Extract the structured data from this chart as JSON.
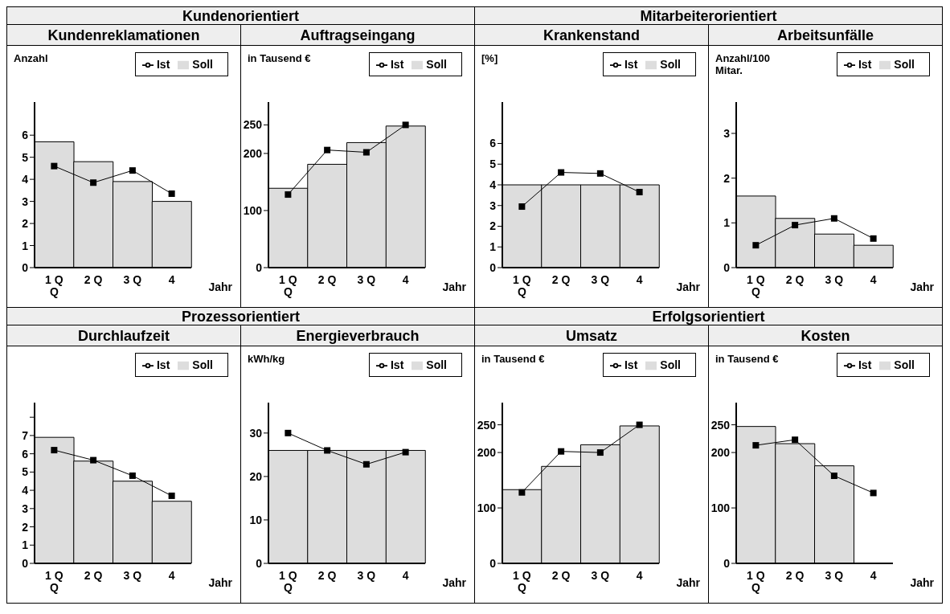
{
  "chart_data": [
    {
      "type": "other",
      "title": "Kundenorientiert"
    },
    {
      "type": "other",
      "title": "Mitarbeiterorientiert"
    },
    {
      "type": "bar",
      "title": "Kundenreklamationen",
      "ylabel": "Anzahl",
      "xlabel": "Jahr",
      "categories": [
        "1 Q\nQ",
        "2 Q",
        "3 Q",
        "4"
      ],
      "ylim": [
        0,
        7.5
      ],
      "yticks": [
        0,
        1,
        2,
        3,
        4,
        5,
        6
      ],
      "legend": "top right",
      "marker": "square",
      "series": [
        {
          "name": "Soll",
          "color": "#dddddd",
          "values": [
            5.7,
            4.8,
            3.9,
            3.0
          ]
        },
        {
          "name": "Ist",
          "type": "line",
          "color": "#000000",
          "values": [
            4.6,
            3.85,
            4.4,
            3.35
          ]
        }
      ]
    },
    {
      "type": "bar",
      "title": "Auftragseingang",
      "ylabel": "in Tausend €",
      "xlabel": "Jahr",
      "categories": [
        "1 Q\nQ",
        "2 Q",
        "3 Q",
        "4"
      ],
      "ylim": [
        0,
        290
      ],
      "yticks": [
        0,
        100,
        200,
        250
      ],
      "legend": "top right",
      "marker": "square",
      "series": [
        {
          "name": "Soll",
          "color": "#dddddd",
          "values": [
            139,
            181,
            219,
            248
          ]
        },
        {
          "name": "Ist",
          "type": "line",
          "color": "#000000",
          "values": [
            128,
            206,
            202,
            250
          ]
        }
      ]
    },
    {
      "type": "bar",
      "title": "Krankenstand",
      "ylabel": "[%]",
      "xlabel": "Jahr",
      "categories": [
        "1 Q\nQ",
        "2 Q",
        "3 Q",
        "4"
      ],
      "ylim": [
        0,
        8
      ],
      "yticks": [
        0,
        1,
        2,
        3,
        4,
        5,
        6
      ],
      "legend": "top right",
      "marker": "square",
      "series": [
        {
          "name": "Soll",
          "color": "#dddddd",
          "values": [
            4,
            4,
            4,
            4
          ]
        },
        {
          "name": "Ist",
          "type": "line",
          "color": "#000000",
          "values": [
            2.95,
            4.6,
            4.55,
            3.65
          ]
        }
      ]
    },
    {
      "type": "bar",
      "title": "Arbeitsunfälle",
      "ylabel": "Anzahl/100 Mitar.",
      "xlabel": "Jahr",
      "categories": [
        "1 Q\nQ",
        "2 Q",
        "3 Q",
        "4"
      ],
      "ylim": [
        0,
        3.7
      ],
      "yticks": [
        0,
        1,
        2,
        3
      ],
      "legend": "top right",
      "marker": "square",
      "series": [
        {
          "name": "Soll",
          "color": "#dddddd",
          "values": [
            1.6,
            1.1,
            0.75,
            0.5
          ]
        },
        {
          "name": "Ist",
          "type": "line",
          "color": "#000000",
          "values": [
            0.5,
            0.95,
            1.1,
            0.65
          ]
        }
      ]
    },
    {
      "type": "other",
      "title": "Prozessorientiert"
    },
    {
      "type": "other",
      "title": "Erfolgsorientiert"
    },
    {
      "type": "bar",
      "title": "Durchlaufzeit",
      "xlabel": "Jahr",
      "categories": [
        "1 Q\nQ",
        "2 Q",
        "3 Q",
        "4"
      ],
      "ylim": [
        0,
        8.8
      ],
      "yticks": [
        0,
        1,
        2,
        3,
        4,
        5,
        6,
        7,
        {
          "value": 8,
          "label": null
        }
      ],
      "legend": "top right",
      "marker": "square",
      "series": [
        {
          "name": "Soll",
          "color": "#dddddd",
          "values": [
            6.9,
            5.6,
            4.5,
            3.4
          ]
        },
        {
          "name": "Ist",
          "type": "line",
          "color": "#000000",
          "values": [
            6.2,
            5.65,
            4.8,
            3.7
          ]
        }
      ]
    },
    {
      "type": "bar",
      "title": "Energieverbrauch",
      "ylabel": "kWh/kg",
      "xlabel": "Jahr",
      "categories": [
        "1 Q\nQ",
        "2 Q",
        "3 Q",
        "4"
      ],
      "ylim": [
        0,
        37
      ],
      "yticks": [
        0,
        10,
        20,
        30
      ],
      "legend": "top right",
      "marker": "square",
      "series": [
        {
          "name": "Soll",
          "color": "#dddddd",
          "values": [
            26,
            26,
            26,
            26
          ]
        },
        {
          "name": "Ist",
          "type": "line",
          "color": "#000000",
          "values": [
            30,
            26,
            22.8,
            25.6
          ]
        }
      ]
    },
    {
      "type": "bar",
      "title": "Umsatz",
      "ylabel": "in Tausend €",
      "xlabel": "Jahr",
      "categories": [
        "1 Q\nQ",
        "2 Q",
        "3 Q",
        "4"
      ],
      "ylim": [
        0,
        290
      ],
      "yticks": [
        0,
        100,
        200,
        250
      ],
      "legend": "top right",
      "marker": "square",
      "series": [
        {
          "name": "Soll",
          "color": "#dddddd",
          "values": [
            133,
            175,
            214,
            248
          ]
        },
        {
          "name": "Ist",
          "type": "line",
          "color": "#000000",
          "values": [
            128,
            202,
            200,
            250
          ]
        }
      ]
    },
    {
      "type": "bar",
      "title": "Kosten",
      "ylabel": "in Tausend €",
      "xlabel": "Jahr",
      "categories": [
        "1 Q\nQ",
        "2 Q",
        "3 Q",
        "4"
      ],
      "ylim": [
        0,
        290
      ],
      "yticks": [
        0,
        100,
        200,
        250
      ],
      "legend": "top right",
      "marker": "square",
      "series": [
        {
          "name": "Soll",
          "color": "#dddddd",
          "values": [
            247,
            216,
            176,
            null
          ]
        },
        {
          "name": "Ist",
          "type": "line",
          "color": "#000000",
          "values": [
            213,
            223,
            158,
            127
          ]
        }
      ]
    }
  ]
}
